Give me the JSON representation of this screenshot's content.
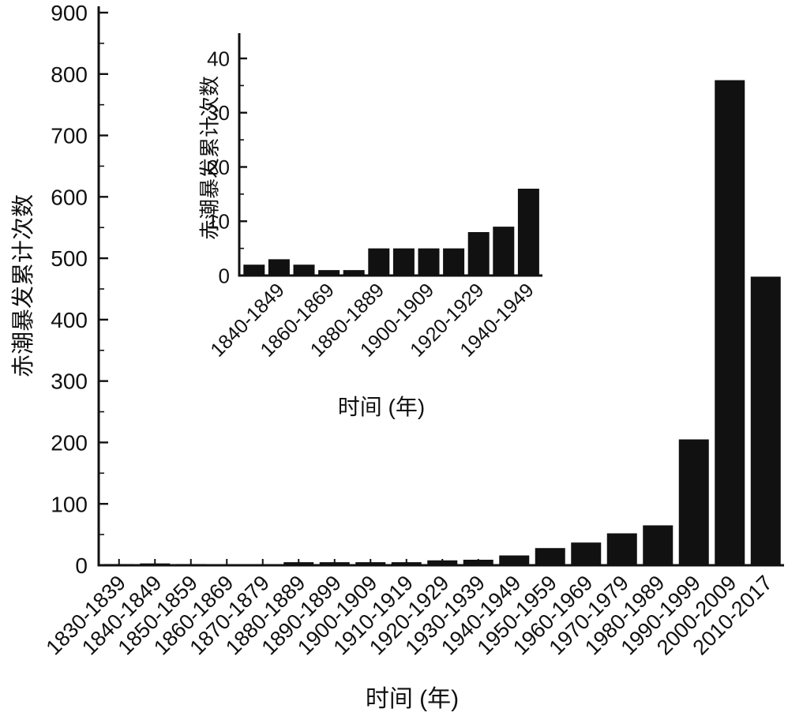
{
  "page": {
    "background": "#ffffff",
    "bar_color": "#111111",
    "axis_color": "#111111",
    "text_color": "#111111"
  },
  "chart_data": [
    {
      "id": "main",
      "type": "bar",
      "xlabel": "时间 (年)",
      "ylabel": "赤潮暴发累计次数",
      "ylim": [
        0,
        910
      ],
      "yticks": [
        0,
        100,
        200,
        300,
        400,
        500,
        600,
        700,
        800,
        900
      ],
      "ytick_minor_interval": 50,
      "grid": false,
      "legend": "none",
      "categories": [
        "1830-1839",
        "1840-1849",
        "1850-1859",
        "1860-1869",
        "1870-1879",
        "1880-1889",
        "1890-1899",
        "1900-1909",
        "1910-1919",
        "1920-1929",
        "1930-1939",
        "1940-1949",
        "1950-1959",
        "1960-1969",
        "1970-1979",
        "1980-1989",
        "1990-1999",
        "2000-2009",
        "2010-2017"
      ],
      "values": [
        2,
        3,
        2,
        1,
        1,
        5,
        5,
        5,
        5,
        8,
        9,
        16,
        28,
        37,
        52,
        65,
        205,
        790,
        470
      ]
    },
    {
      "id": "inset",
      "type": "bar",
      "xlabel": "时间 (年)",
      "ylabel": "赤潮暴发累计次数",
      "ylim": [
        0,
        44
      ],
      "yticks": [
        0,
        10,
        20,
        30,
        40
      ],
      "ytick_minor_interval": 5,
      "grid": false,
      "legend": "none",
      "categories": [
        "1830-1839",
        "1840-1849",
        "1850-1859",
        "1860-1869",
        "1870-1879",
        "1880-1889",
        "1890-1899",
        "1900-1909",
        "1910-1919",
        "1920-1929",
        "1930-1939",
        "1940-1949"
      ],
      "xtick_label_indices": [
        1,
        3,
        5,
        7,
        9,
        11
      ],
      "xtick_labels_shown": [
        "1840-1849",
        "1860-1869",
        "1880-1889",
        "1900-1909",
        "1920-1929",
        "1940-1949"
      ],
      "values": [
        2,
        3,
        2,
        1,
        1,
        5,
        5,
        5,
        5,
        8,
        9,
        16
      ]
    }
  ]
}
